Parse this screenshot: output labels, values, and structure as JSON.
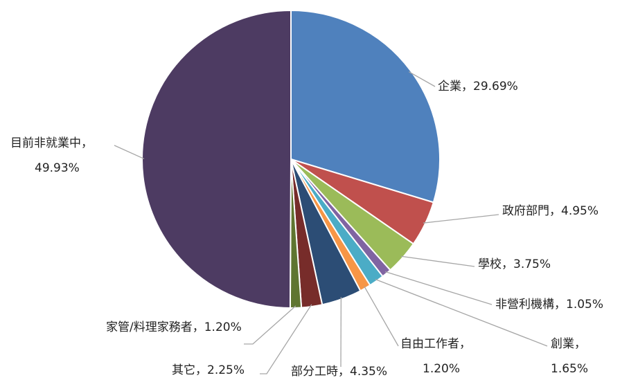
{
  "chart_data": {
    "type": "pie",
    "categories": [
      "企業",
      "政府部門",
      "學校",
      "非營利機構",
      "創業",
      "自由工作者",
      "部分工時",
      "其它",
      "家管/料理家務者",
      "目前非就業中"
    ],
    "values": [
      29.69,
      4.95,
      3.75,
      1.05,
      1.65,
      1.2,
      4.35,
      2.25,
      1.2,
      49.93
    ],
    "value_labels": [
      "29.69%",
      "4.95%",
      "3.75%",
      "1.05%",
      "1.65%",
      "1.20%",
      "4.35%",
      "2.25%",
      "1.20%",
      "49.93%"
    ],
    "label_separator": "，",
    "colors": [
      "#4f81bd",
      "#c0504d",
      "#9bbb59",
      "#8064a2",
      "#4bacc6",
      "#f79646",
      "#2c4d75",
      "#772c2a",
      "#5f7530",
      "#4d3b62"
    ]
  }
}
